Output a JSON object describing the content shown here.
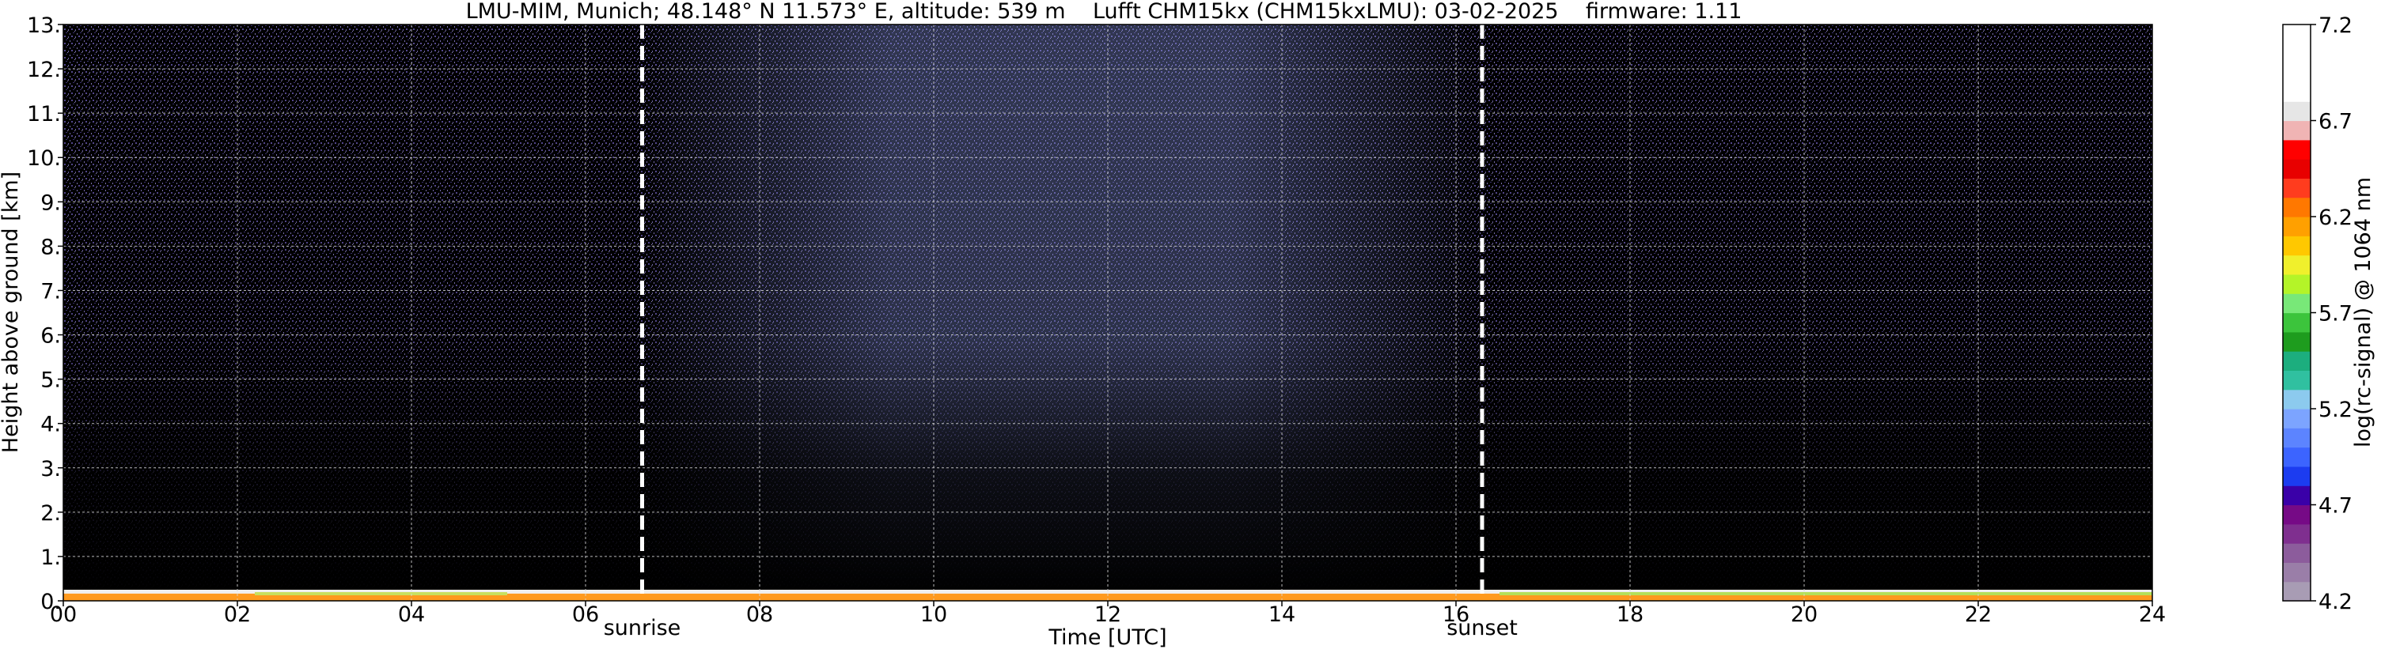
{
  "chart_data": {
    "type": "heatmap",
    "title": "LMU-MIM, Munich; 48.148° N 11.573° E, altitude: 539 m    Lufft CHM15kx (CHM15kxLMU): 03-02-2025    firmware: 1.11",
    "xlabel": "Time [UTC]",
    "ylabel": "Height above ground [km]",
    "xlim": [
      0,
      24
    ],
    "ylim": [
      0,
      13
    ],
    "x_ticks": [
      0,
      2,
      4,
      6,
      8,
      10,
      12,
      14,
      16,
      18,
      20,
      22,
      24
    ],
    "x_tick_labels": [
      "00",
      "02",
      "04",
      "06",
      "08",
      "10",
      "12",
      "14",
      "16",
      "18",
      "20",
      "22",
      "24"
    ],
    "y_ticks": [
      0,
      1,
      2,
      3,
      4,
      5,
      6,
      7,
      8,
      9,
      10,
      11,
      12,
      13
    ],
    "y_tick_labels": [
      "0.",
      "1.",
      "2.",
      "3.",
      "4.",
      "5.",
      "6.",
      "7.",
      "8.",
      "9.",
      "10.",
      "11.",
      "12.",
      "13."
    ],
    "grid": true,
    "background_color": "#000000",
    "markers": [
      {
        "label": "sunrise",
        "time_utc": 6.65,
        "style": "dashed",
        "color": "#ffffff"
      },
      {
        "label": "sunset",
        "time_utc": 16.3,
        "style": "dashed",
        "color": "#ffffff"
      }
    ],
    "colorbar": {
      "label": "log(rc-signal) @ 1064 nm",
      "range": [
        4.2,
        7.2
      ],
      "ticks": [
        4.2,
        4.7,
        5.2,
        5.7,
        6.2,
        6.7,
        7.2
      ],
      "tick_labels": [
        "4.2",
        "4.7",
        "5.2",
        "5.7",
        "6.2",
        "6.7",
        "7.2"
      ],
      "colors": [
        "#a89cb4",
        "#9a7ea8",
        "#8c5c9c",
        "#7f2f8f",
        "#760a86",
        "#3a00a8",
        "#1c3cf0",
        "#3c64ff",
        "#5c84ff",
        "#7ca4ff",
        "#8ccaee",
        "#30c0a0",
        "#1cae7e",
        "#1e9c1e",
        "#3cc43c",
        "#78e878",
        "#b4f428",
        "#f0f02c",
        "#ffc800",
        "#ffa000",
        "#ff7800",
        "#ff3c1e",
        "#e80000",
        "#ff0000",
        "#f0b4b4",
        "#e6e6e6",
        "#ffffff",
        "#ffffff",
        "#ffffff",
        "#ffffff"
      ]
    },
    "observed_signal": {
      "surface_layer_height_km": [
        0,
        0.25
      ],
      "night_noise_color": "#5a46a0",
      "daytime_noise_color": "#7a8ad8"
    }
  }
}
